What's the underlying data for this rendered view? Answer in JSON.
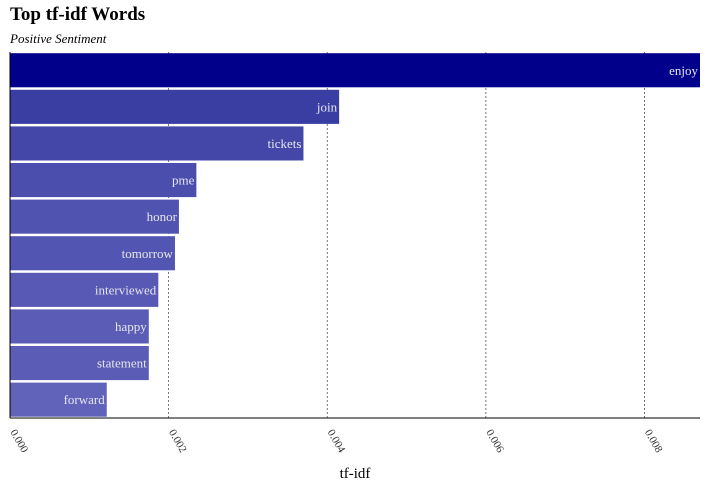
{
  "chart_data": {
    "type": "bar",
    "orientation": "horizontal",
    "title": "Top tf-idf Words",
    "subtitle": "Positive Sentiment",
    "xlabel": "tf-idf",
    "ylabel": "",
    "xlim": [
      0,
      0.0087
    ],
    "x_ticks": [
      "0.000",
      "0.002",
      "0.004",
      "0.006",
      "0.008"
    ],
    "grid": "vertical dashed",
    "categories": [
      "enjoy",
      "join",
      "tickets",
      "pme",
      "honor",
      "tomorrow",
      "interviewed",
      "happy",
      "statement",
      "forward"
    ],
    "values": [
      0.0087,
      0.00415,
      0.0037,
      0.00235,
      0.00213,
      0.00208,
      0.00187,
      0.00175,
      0.00175,
      0.00122
    ],
    "colors": [
      "#00008b",
      "#3a3ea3",
      "#4446a8",
      "#4c4eae",
      "#5153b1",
      "#5355b2",
      "#5759b4",
      "#5a5cb6",
      "#5a5cb6",
      "#6163ba"
    ]
  }
}
